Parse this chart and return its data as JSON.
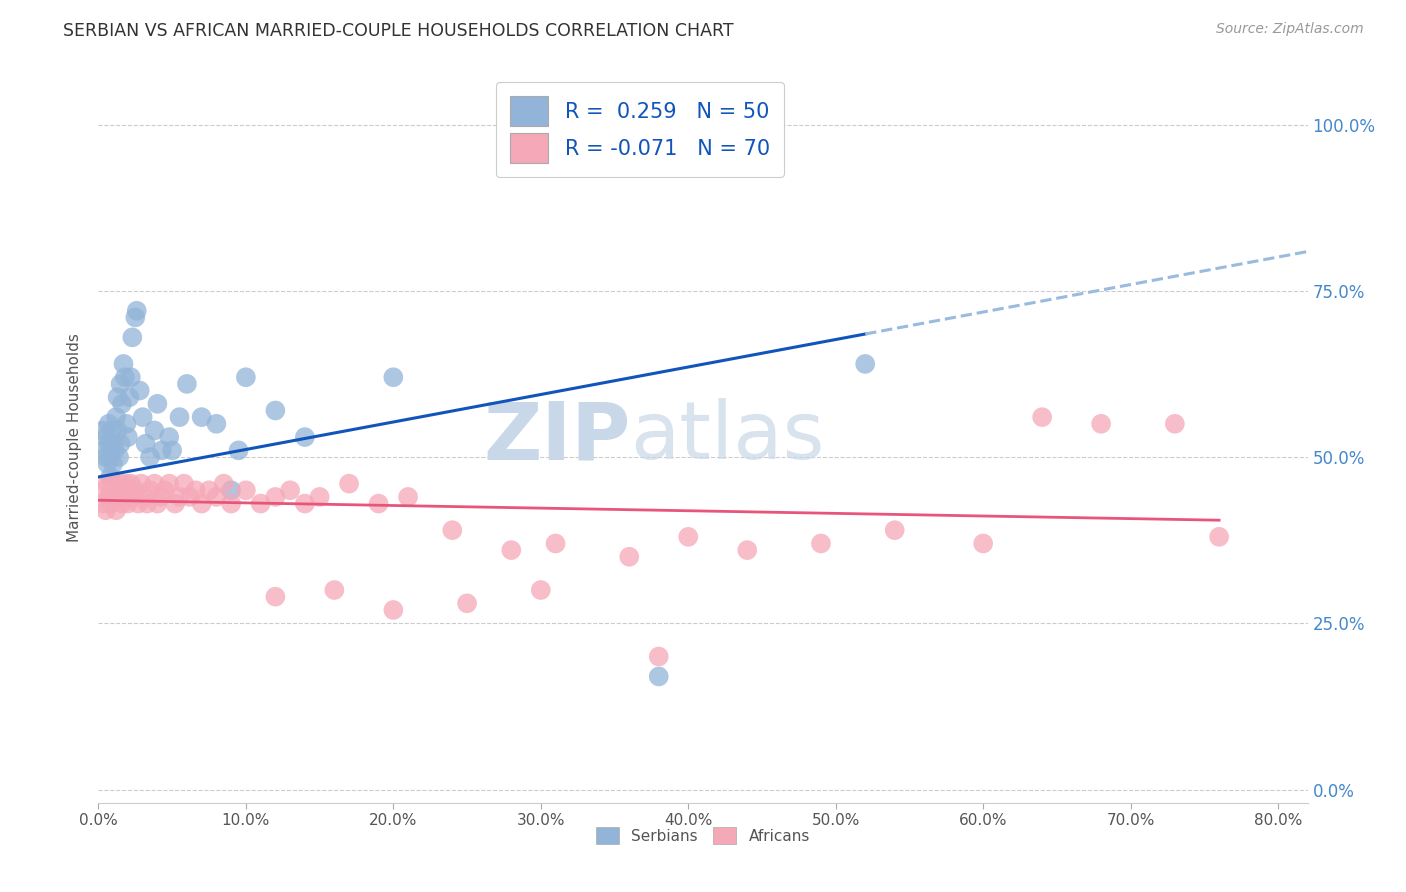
{
  "title": "SERBIAN VS AFRICAN MARRIED-COUPLE HOUSEHOLDS CORRELATION CHART",
  "source": "Source: ZipAtlas.com",
  "ylabel": "Married-couple Households",
  "xlim": [
    0.0,
    0.82
  ],
  "ylim": [
    -0.02,
    1.08
  ],
  "y_tick_vals": [
    0.0,
    0.25,
    0.5,
    0.75,
    1.0
  ],
  "y_tick_labels": [
    "0.0%",
    "25.0%",
    "50.0%",
    "75.0%",
    "100.0%"
  ],
  "x_tick_vals": [
    0.0,
    0.1,
    0.2,
    0.3,
    0.4,
    0.5,
    0.6,
    0.7,
    0.8
  ],
  "x_tick_labels": [
    "0.0%",
    "10.0%",
    "20.0%",
    "30.0%",
    "40.0%",
    "50.0%",
    "60.0%",
    "70.0%",
    "80.0%"
  ],
  "legend_R_vals": [
    "0.259",
    "-0.071"
  ],
  "legend_N_vals": [
    "50",
    "70"
  ],
  "serbian_color": "#92B4D8",
  "african_color": "#F5A8B8",
  "serbian_trend_color": "#1155BB",
  "african_trend_color": "#E8557A",
  "dashed_color": "#99BBDD",
  "watermark_color": "#C8D8E8",
  "grid_color": "#CCCCCC",
  "serbian_points_x": [
    0.003,
    0.004,
    0.005,
    0.005,
    0.006,
    0.007,
    0.007,
    0.008,
    0.008,
    0.009,
    0.01,
    0.01,
    0.011,
    0.012,
    0.013,
    0.013,
    0.014,
    0.015,
    0.015,
    0.016,
    0.017,
    0.018,
    0.019,
    0.02,
    0.021,
    0.022,
    0.023,
    0.025,
    0.026,
    0.028,
    0.03,
    0.032,
    0.035,
    0.038,
    0.04,
    0.043,
    0.048,
    0.05,
    0.055,
    0.06,
    0.07,
    0.08,
    0.09,
    0.095,
    0.1,
    0.12,
    0.14,
    0.2,
    0.38,
    0.52
  ],
  "serbian_points_y": [
    0.54,
    0.51,
    0.5,
    0.53,
    0.49,
    0.55,
    0.52,
    0.5,
    0.47,
    0.54,
    0.52,
    0.49,
    0.51,
    0.56,
    0.54,
    0.59,
    0.5,
    0.52,
    0.61,
    0.58,
    0.64,
    0.62,
    0.55,
    0.53,
    0.59,
    0.62,
    0.68,
    0.71,
    0.72,
    0.6,
    0.56,
    0.52,
    0.5,
    0.54,
    0.58,
    0.51,
    0.53,
    0.51,
    0.56,
    0.61,
    0.56,
    0.55,
    0.45,
    0.51,
    0.62,
    0.57,
    0.53,
    0.62,
    0.17,
    0.64
  ],
  "african_points_x": [
    0.003,
    0.004,
    0.005,
    0.006,
    0.007,
    0.008,
    0.009,
    0.01,
    0.011,
    0.012,
    0.013,
    0.014,
    0.015,
    0.016,
    0.017,
    0.018,
    0.019,
    0.02,
    0.021,
    0.022,
    0.023,
    0.025,
    0.027,
    0.029,
    0.031,
    0.033,
    0.035,
    0.038,
    0.04,
    0.042,
    0.045,
    0.048,
    0.052,
    0.055,
    0.058,
    0.062,
    0.066,
    0.07,
    0.075,
    0.08,
    0.085,
    0.09,
    0.1,
    0.11,
    0.12,
    0.13,
    0.14,
    0.15,
    0.17,
    0.19,
    0.21,
    0.24,
    0.28,
    0.31,
    0.36,
    0.4,
    0.44,
    0.49,
    0.54,
    0.6,
    0.64,
    0.68,
    0.73,
    0.76,
    0.12,
    0.16,
    0.2,
    0.25,
    0.3,
    0.38
  ],
  "african_points_y": [
    0.43,
    0.45,
    0.42,
    0.46,
    0.44,
    0.43,
    0.45,
    0.44,
    0.46,
    0.42,
    0.45,
    0.44,
    0.46,
    0.43,
    0.45,
    0.44,
    0.46,
    0.43,
    0.45,
    0.46,
    0.44,
    0.45,
    0.43,
    0.46,
    0.44,
    0.43,
    0.45,
    0.46,
    0.43,
    0.44,
    0.45,
    0.46,
    0.43,
    0.44,
    0.46,
    0.44,
    0.45,
    0.43,
    0.45,
    0.44,
    0.46,
    0.43,
    0.45,
    0.43,
    0.44,
    0.45,
    0.43,
    0.44,
    0.46,
    0.43,
    0.44,
    0.39,
    0.36,
    0.37,
    0.35,
    0.38,
    0.36,
    0.37,
    0.39,
    0.37,
    0.56,
    0.55,
    0.55,
    0.38,
    0.29,
    0.3,
    0.27,
    0.28,
    0.3,
    0.2
  ],
  "background_color": "#ffffff"
}
